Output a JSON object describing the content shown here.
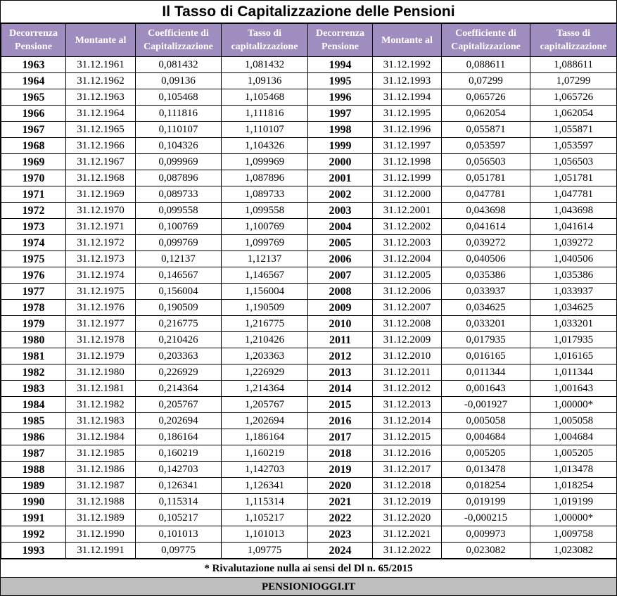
{
  "title": "Il Tasso di Capitalizzazione delle Pensioni",
  "headers": [
    "Decorrenza\nPensione",
    "Montante al",
    "Coefficiente di\nCapitalizzazione",
    "Tasso di\ncapitalizzazione",
    "Decorrenza\nPensione",
    "Montante al",
    "Coefficiente di\nCapitalizzazione",
    "Tasso di\ncapitalizzazione"
  ],
  "rows": [
    [
      "1963",
      "31.12.1961",
      "0,081432",
      "1,081432",
      "1994",
      "31.12.1992",
      "0,088611",
      "1,088611"
    ],
    [
      "1964",
      "31.12.1962",
      "0,09136",
      "1,09136",
      "1995",
      "31.12.1993",
      "0,07299",
      "1,07299"
    ],
    [
      "1965",
      "31.12.1963",
      "0,105468",
      "1,105468",
      "1996",
      "31.12.1994",
      "0,065726",
      "1,065726"
    ],
    [
      "1966",
      "31.12.1964",
      "0,111816",
      "1,111816",
      "1997",
      "31.12.1995",
      "0,062054",
      "1,062054"
    ],
    [
      "1967",
      "31.12.1965",
      "0,110107",
      "1,110107",
      "1998",
      "31.12.1996",
      "0,055871",
      "1,055871"
    ],
    [
      "1968",
      "31.12.1966",
      "0,104326",
      "1,104326",
      "1999",
      "31.12.1997",
      "0,053597",
      "1,053597"
    ],
    [
      "1969",
      "31.12.1967",
      "0,099969",
      "1,099969",
      "2000",
      "31.12.1998",
      "0,056503",
      "1,056503"
    ],
    [
      "1970",
      "31.12.1968",
      "0,087896",
      "1,087896",
      "2001",
      "31.12.1999",
      "0,051781",
      "1,051781"
    ],
    [
      "1971",
      "31.12.1969",
      "0,089733",
      "1,089733",
      "2002",
      "31.12.2000",
      "0,047781",
      "1,047781"
    ],
    [
      "1972",
      "31.12.1970",
      "0,099558",
      "1,099558",
      "2003",
      "31.12.2001",
      "0,043698",
      "1,043698"
    ],
    [
      "1973",
      "31.12.1971",
      "0,100769",
      "1,100769",
      "2004",
      "31.12.2002",
      "0,041614",
      "1,041614"
    ],
    [
      "1974",
      "31.12.1972",
      "0,099769",
      "1,099769",
      "2005",
      "31.12.2003",
      "0,039272",
      "1,039272"
    ],
    [
      "1975",
      "31.12.1973",
      "0,12137",
      "1,12137",
      "2006",
      "31.12.2004",
      "0,040506",
      "1,040506"
    ],
    [
      "1976",
      "31.12.1974",
      "0,146567",
      "1,146567",
      "2007",
      "31.12.2005",
      "0,035386",
      "1,035386"
    ],
    [
      "1977",
      "31.12.1975",
      "0,156004",
      "1,156004",
      "2008",
      "31.12.2006",
      "0,033937",
      "1,033937"
    ],
    [
      "1978",
      "31.12.1976",
      "0,190509",
      "1,190509",
      "2009",
      "31.12.2007",
      "0,034625",
      "1,034625"
    ],
    [
      "1979",
      "31.12.1977",
      "0,216775",
      "1,216775",
      "2010",
      "31.12.2008",
      "0,033201",
      "1,033201"
    ],
    [
      "1980",
      "31.12.1978",
      "0,210426",
      "1,210426",
      "2011",
      "31.12.2009",
      "0,017935",
      "1,017935"
    ],
    [
      "1981",
      "31.12.1979",
      "0,203363",
      "1,203363",
      "2012",
      "31.12.2010",
      "0,016165",
      "1,016165"
    ],
    [
      "1982",
      "31.12.1980",
      "0,226929",
      "1,226929",
      "2013",
      "31.12.2011",
      "0,011344",
      "1,011344"
    ],
    [
      "1983",
      "31.12.1981",
      "0,214364",
      "1,214364",
      "2014",
      "31.12.2012",
      "0,001643",
      "1,001643"
    ],
    [
      "1984",
      "31.12.1982",
      "0,205767",
      "1,205767",
      "2015",
      "31.12.2013",
      "-0,001927",
      "1,00000*"
    ],
    [
      "1985",
      "31.12.1983",
      "0,202694",
      "1,202694",
      "2016",
      "31.12.2014",
      "0,005058",
      "1,005058"
    ],
    [
      "1986",
      "31.12.1984",
      "0,186164",
      "1,186164",
      "2017",
      "31.12.2015",
      "0,004684",
      "1,004684"
    ],
    [
      "1987",
      "31.12.1985",
      "0,160219",
      "1,160219",
      "2018",
      "31.12.2016",
      "0,005205",
      "1,005205"
    ],
    [
      "1988",
      "31.12.1986",
      "0,142703",
      "1,142703",
      "2019",
      "31.12.2017",
      "0,013478",
      "1,013478"
    ],
    [
      "1989",
      "31.12.1987",
      "0,126341",
      "1,126341",
      "2020",
      "31.12.2018",
      "0,018254",
      "1,018254"
    ],
    [
      "1990",
      "31.12.1988",
      "0,115314",
      "1,115314",
      "2021",
      "31.12.2019",
      "0,019199",
      "1,019199"
    ],
    [
      "1991",
      "31.12.1989",
      "0,105217",
      "1,105217",
      "2022",
      "31.12.2020",
      "-0,000215",
      "1,00000*"
    ],
    [
      "1992",
      "31.12.1990",
      "0,101013",
      "1,101013",
      "2023",
      "31.12.2021",
      "0,009973",
      "1,009758"
    ],
    [
      "1993",
      "31.12.1991",
      "0,09775",
      "1,09775",
      "2024",
      "31.12.2022",
      "0,023082",
      "1,023082"
    ]
  ],
  "note": "* Rivalutazione nulla ai sensi del Dl n. 65/2015",
  "footer": "PENSIONIOGGI.IT",
  "colors": {
    "header_bg": "#9f8dbf",
    "header_text": "#ffffff",
    "footer_bg": "#bfbfbf"
  }
}
